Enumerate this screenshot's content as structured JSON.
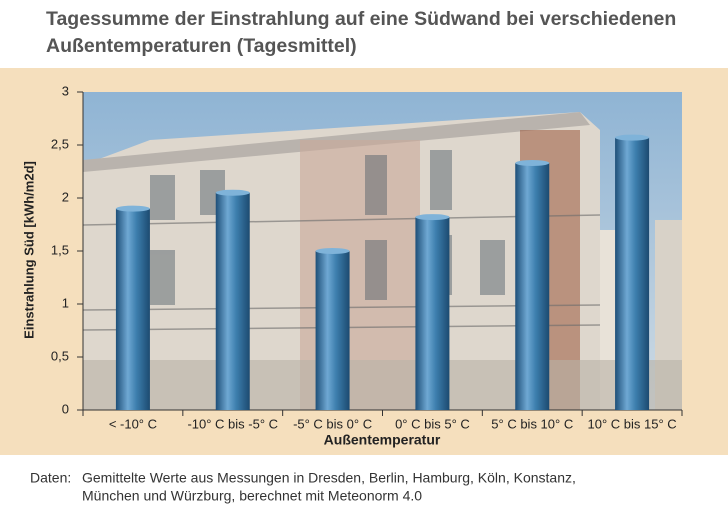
{
  "chart_data": {
    "type": "bar",
    "title": "Tagessumme der Einstrahlung auf eine Südwand bei verschiedenen Außentemperaturen (Tagesmittel)",
    "x_label": "Außentemperatur",
    "y_label": "Einstrahlung Süd [kWh/m2d]",
    "categories": [
      "< -10° C",
      "-10° C bis -5° C",
      "-5° C bis 0° C",
      "0° C bis 5° C",
      "5° C bis 10° C",
      "10° C bis 15° C"
    ],
    "values": [
      1.9,
      2.05,
      1.5,
      1.82,
      2.33,
      2.57
    ],
    "color": "#3d7fae",
    "ylim": [
      0,
      3
    ],
    "yticks": [
      0,
      {
        "value": 0.5,
        "label": "0,5"
      },
      1,
      {
        "value": 1.5,
        "label": "1,5"
      },
      2,
      {
        "value": 2.5,
        "label": "2,5"
      },
      3
    ],
    "source_label": "Daten:",
    "source_lines": [
      "Gemittelte Werte aus Messungen in Dresden, Berlin, Hamburg, Köln, Konstanz,",
      "München und Würzburg, berechnet mit Meteonorm 4.0"
    ]
  }
}
